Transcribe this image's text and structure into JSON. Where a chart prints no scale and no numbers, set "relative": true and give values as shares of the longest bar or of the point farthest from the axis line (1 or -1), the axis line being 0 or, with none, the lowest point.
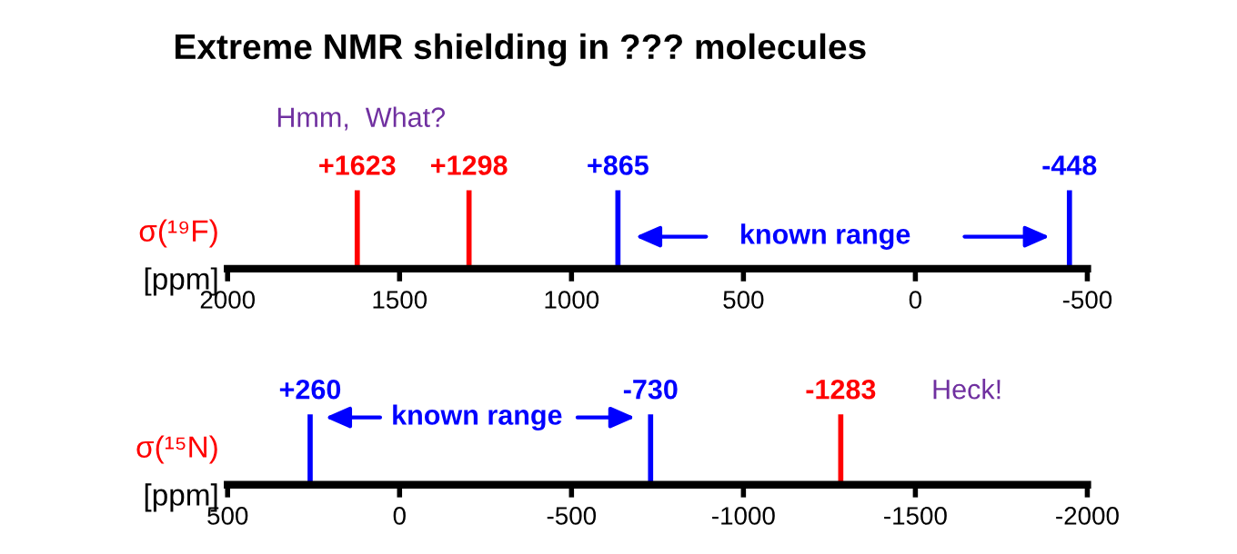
{
  "chart_data": [
    {
      "type": "bar",
      "relative": true,
      "title": "Extreme NMR shielding in ??? molecules",
      "ylabel": "σ(¹⁹F)\n[ppm]",
      "xlim": [
        2000,
        -500
      ],
      "xticks": [
        2000,
        1500,
        1000,
        500,
        0,
        -500
      ],
      "x": [
        1623,
        1298,
        865,
        -448
      ],
      "values": [
        1,
        1,
        1,
        1
      ],
      "colors": [
        "#ff0000",
        "#ff0000",
        "#0000ff",
        "#0000ff"
      ],
      "annotations": [
        {
          "text": "+1623",
          "x": 1623,
          "y": 1
        },
        {
          "text": "+1298",
          "x": 1298,
          "y": 1
        },
        {
          "text": "+865",
          "x": 865,
          "y": 1
        },
        {
          "text": "-448",
          "x": -448,
          "y": 1
        },
        "Hmm,  What?",
        "known range"
      ]
    },
    {
      "type": "bar",
      "relative": true,
      "ylabel": "σ(¹⁵N)\n[ppm]",
      "xlim": [
        500,
        -2000
      ],
      "xticks": [
        500,
        0,
        -500,
        -1000,
        -1500,
        -2000
      ],
      "x": [
        260,
        -730,
        -1283
      ],
      "values": [
        1,
        1,
        1
      ],
      "colors": [
        "#0000ff",
        "#0000ff",
        "#ff0000"
      ],
      "annotations": [
        {
          "text": "+260",
          "x": 260,
          "y": 1
        },
        {
          "text": "-730",
          "x": -730,
          "y": 1
        },
        {
          "text": "-1283",
          "x": -1283,
          "y": 1
        },
        "known range",
        "Heck!"
      ]
    }
  ]
}
